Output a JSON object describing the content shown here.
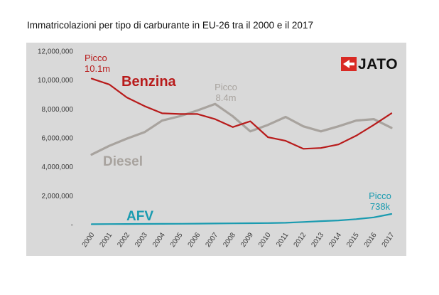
{
  "caption": "Immatricolazioni per tipo di carburante in EU-26 tra il 2000 e il 2017",
  "logo_text": "JATO",
  "colors": {
    "benzina": "#b81b1b",
    "diesel": "#a8a39e",
    "afv": "#1a9bb0",
    "panel": "#d9d9d9",
    "logo_red": "#d92a24"
  },
  "chart_data": {
    "type": "line",
    "title": "",
    "xlabel": "",
    "ylabel": "",
    "ylim": [
      0,
      12000000
    ],
    "y_ticks": [
      "12,000,000",
      "10,000,000",
      "8,000,000",
      "6,000,000",
      "4,000,000",
      "2,000,000",
      "-"
    ],
    "categories": [
      "2000",
      "2001",
      "2002",
      "2003",
      "2004",
      "2005",
      "2006",
      "2007",
      "2008",
      "2009",
      "2010",
      "2011",
      "2012",
      "2013",
      "2014",
      "2015",
      "2016",
      "2017"
    ],
    "series": [
      {
        "name": "Benzina",
        "values": [
          10100000,
          9700000,
          8800000,
          8200000,
          7700000,
          7650000,
          7650000,
          7300000,
          6750000,
          7150000,
          6050000,
          5800000,
          5250000,
          5300000,
          5550000,
          6150000,
          6900000,
          7700000
        ]
      },
      {
        "name": "Diesel",
        "values": [
          4850000,
          5450000,
          5950000,
          6400000,
          7200000,
          7500000,
          7900000,
          8350000,
          7500000,
          6450000,
          6900000,
          7450000,
          6800000,
          6450000,
          6800000,
          7200000,
          7300000,
          6700000
        ]
      },
      {
        "name": "AFV",
        "values": [
          30000,
          40000,
          45000,
          50000,
          55000,
          60000,
          70000,
          80000,
          90000,
          100000,
          110000,
          130000,
          180000,
          240000,
          290000,
          380000,
          500000,
          738000
        ]
      }
    ],
    "annotations": [
      {
        "series": "Benzina",
        "index": 0,
        "line1": "Picco",
        "line2": "10.1m"
      },
      {
        "series": "Diesel",
        "index": 7,
        "line1": "Picco",
        "line2": "8.4m"
      },
      {
        "series": "AFV",
        "index": 17,
        "line1": "Picco",
        "line2": "738k"
      }
    ]
  }
}
